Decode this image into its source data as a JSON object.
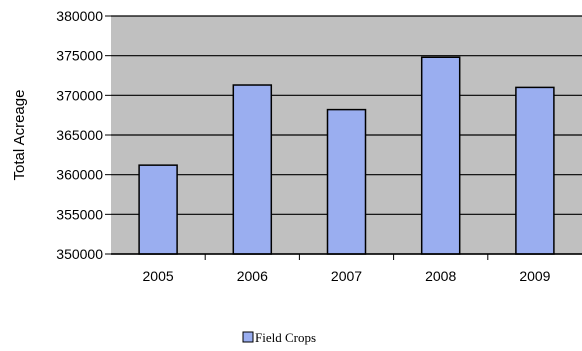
{
  "chart_data": {
    "type": "bar",
    "title": "",
    "xlabel": "",
    "ylabel": "Total Acreage",
    "categories": [
      "2005",
      "2006",
      "2007",
      "2008",
      "2009"
    ],
    "series": [
      {
        "name": "Field Crops",
        "values": [
          361200,
          371300,
          368200,
          374800,
          371000
        ]
      }
    ],
    "ylim": [
      350000,
      380000
    ],
    "yticks": [
      "380000",
      "375000",
      "370000",
      "365000",
      "360000",
      "355000",
      "350000"
    ],
    "grid": true,
    "legend_position": "bottom",
    "colors": {
      "bar": "#9aaef0",
      "plot_bg": "#c0c0c0",
      "bar_border": "#000000"
    }
  }
}
